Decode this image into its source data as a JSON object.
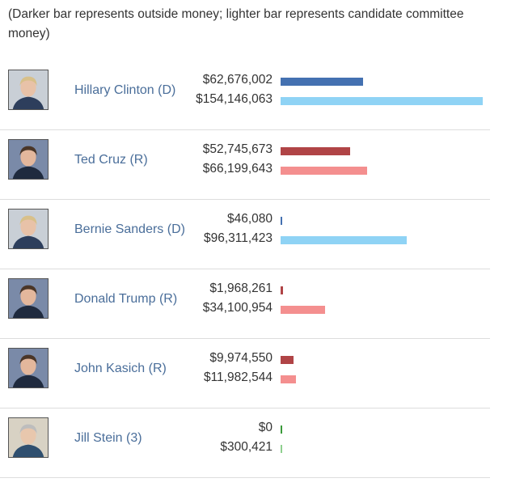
{
  "note": "(Darker bar represents outside money; lighter bar represents candidate committee money)",
  "colors": {
    "D": {
      "outside": "#4471b1",
      "committee": "#8fd3f5"
    },
    "R": {
      "outside": "#b04446",
      "committee": "#f48f8f"
    },
    "3": {
      "outside": "#3a9a3a",
      "committee": "#8fd08f"
    }
  },
  "chart_data": {
    "type": "bar",
    "orientation": "horizontal",
    "series": [
      {
        "name": "outside money"
      },
      {
        "name": "candidate committee money"
      }
    ],
    "categories": [
      "Hillary Clinton (D)",
      "Ted Cruz (R)",
      "Bernie Sanders (D)",
      "Donald Trump (R)",
      "John Kasich (R)",
      "Jill Stein (3)"
    ],
    "max_value": 154146063,
    "candidates": [
      {
        "name": "Hillary Clinton (D)",
        "party": "D",
        "photo": "clinton-photo",
        "outside": 62676002,
        "outside_label": "$62,676,002",
        "committee": 154146063,
        "committee_label": "$154,146,063"
      },
      {
        "name": "Ted Cruz (R)",
        "party": "R",
        "photo": "cruz-photo",
        "outside": 52745673,
        "outside_label": "$52,745,673",
        "committee": 66199643,
        "committee_label": "$66,199,643"
      },
      {
        "name": "Bernie Sanders (D)",
        "party": "D",
        "photo": "sanders-photo",
        "outside": 46080,
        "outside_label": "$46,080",
        "committee": 96311423,
        "committee_label": "$96,311,423"
      },
      {
        "name": "Donald Trump (R)",
        "party": "R",
        "photo": "trump-photo",
        "outside": 1968261,
        "outside_label": "$1,968,261",
        "committee": 34100954,
        "committee_label": "$34,100,954"
      },
      {
        "name": "John Kasich (R)",
        "party": "R",
        "photo": "kasich-photo",
        "outside": 9974550,
        "outside_label": "$9,974,550",
        "committee": 11982544,
        "committee_label": "$11,982,544"
      },
      {
        "name": "Jill Stein (3)",
        "party": "3",
        "photo": "stein-photo",
        "outside": 0,
        "outside_label": "$0",
        "committee": 300421,
        "committee_label": "$300,421"
      }
    ]
  }
}
